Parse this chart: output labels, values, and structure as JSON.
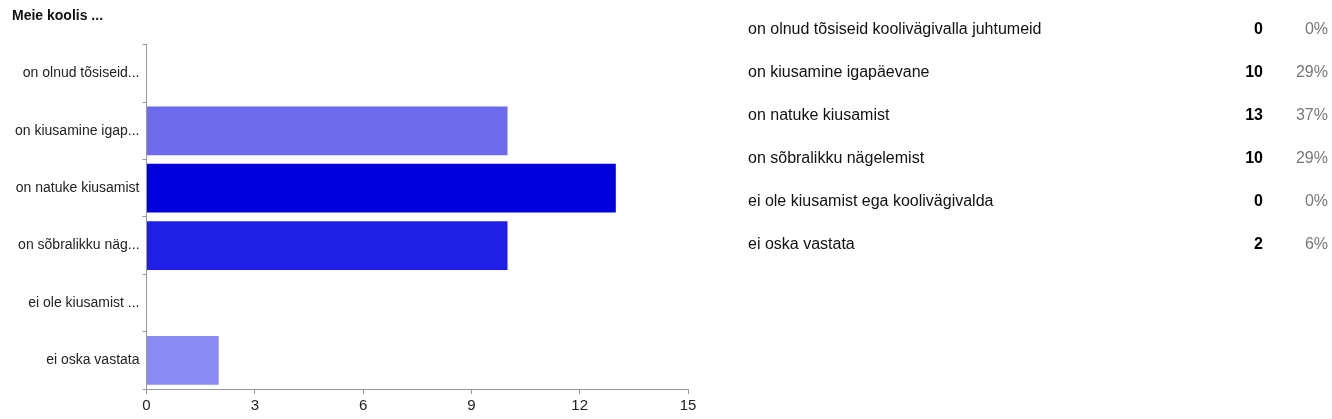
{
  "chart_data": [
    {
      "type": "bar",
      "orientation": "horizontal",
      "title": "Meie koolis ...",
      "categories": [
        "on olnud tõsiseid...",
        "on kiusamine igap...",
        "on natuke kiusamist",
        "on sõbralikku näg...",
        "ei ole kiusamist ...",
        "ei oska vastata"
      ],
      "values": [
        0,
        10,
        13,
        10,
        0,
        2
      ],
      "colors": [
        "#6b6bec",
        "#6b6bec",
        "#0000dd",
        "#1f1fe6",
        "#6b6bec",
        "#8a8af5"
      ],
      "xlim": [
        0,
        15
      ],
      "xticks": [
        0,
        3,
        6,
        9,
        12,
        15
      ]
    },
    {
      "type": "other",
      "data_labels": true,
      "categories": [
        "on olnud tõsiseid koolivägivalla juhtumeid",
        "on kiusamine igapäevane",
        "on natuke kiusamist",
        "on sõbralikku nägelemist",
        "ei ole kiusamist ega koolivägivalda",
        "ei oska vastata"
      ],
      "series": [
        {
          "color": "#000000",
          "values": [
            0,
            10,
            13,
            10,
            0,
            2
          ]
        },
        {
          "color": "#777777",
          "values": [
            0,
            29,
            37,
            29,
            0,
            6
          ],
          "value_labels": [
            "0%",
            "29%",
            "37%",
            "29%",
            "0%",
            "6%"
          ]
        }
      ]
    }
  ]
}
